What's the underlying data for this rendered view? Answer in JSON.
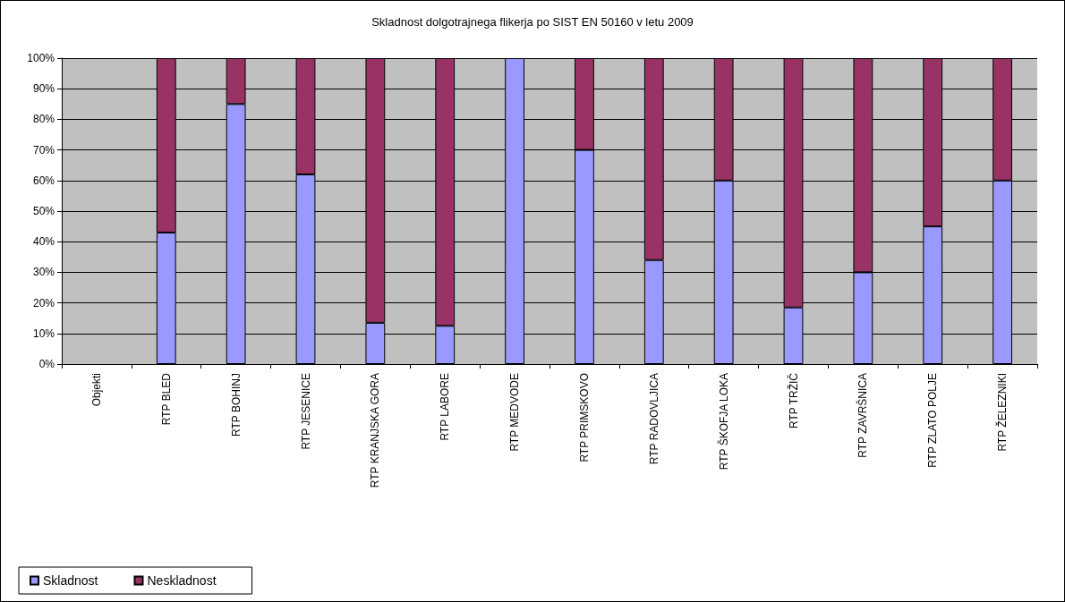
{
  "chart_data": {
    "type": "bar",
    "title": "Skladnost dolgotrajnega flikerja po SIST EN 50160 v letu 2009",
    "categories": [
      "Objekti",
      "RTP BLED",
      "RTP BOHINJ",
      "RTP JESENICE",
      "RTP KRANJSKA GORA",
      "RTP LABORE",
      "RTP MEDVODE",
      "RTP PRIMSKOVO",
      "RTP RADOVLJICA",
      "RTP ŠKOFJA LOKA",
      "RTP TRŽIČ",
      "RTP ZAVRŠNICA",
      "RTP ZLATO POLJE",
      "RTP ŽELEZNIKI"
    ],
    "stacked": true,
    "series": [
      {
        "name": "Skladnost",
        "color": "#9999ff",
        "values": [
          null,
          43,
          85,
          62,
          13.5,
          12.5,
          100,
          70,
          34,
          60,
          18.5,
          30,
          45,
          60
        ]
      },
      {
        "name": "Neskladnost",
        "color": "#993366",
        "values": [
          null,
          57,
          15,
          38,
          86.5,
          87.5,
          null,
          30,
          66,
          40,
          81.5,
          70,
          55,
          40
        ]
      }
    ],
    "ylim": [
      0,
      100
    ],
    "yticks": [
      {
        "value": 0,
        "label": "0%"
      },
      {
        "value": 10,
        "label": "10%"
      },
      {
        "value": 20,
        "label": "20%"
      },
      {
        "value": 30,
        "label": "30%"
      },
      {
        "value": 40,
        "label": "40%"
      },
      {
        "value": 50,
        "label": "50%"
      },
      {
        "value": 60,
        "label": "60%"
      },
      {
        "value": 70,
        "label": "70%"
      },
      {
        "value": 80,
        "label": "80%"
      },
      {
        "value": 90,
        "label": "90%"
      },
      {
        "value": 100,
        "label": "100%"
      }
    ],
    "grid": "y",
    "legend": "bottom left"
  }
}
